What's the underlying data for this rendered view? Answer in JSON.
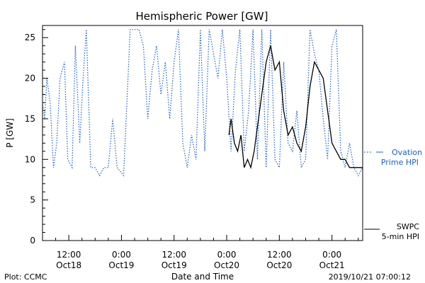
{
  "chart_data": {
    "type": "line",
    "title": "Hemispheric Power [GW]",
    "ylabel": "P [GW]",
    "xlabel": "Date and Time",
    "ylim": [
      0,
      26.5
    ],
    "yticks": [
      0,
      5,
      10,
      15,
      20,
      25
    ],
    "xlim": [
      "2019-10-18 06:00",
      "2019-10-21 07:00"
    ],
    "xticks": [
      {
        "x": "2019-10-18 12:00",
        "time": "12:00",
        "date": "Oct18"
      },
      {
        "x": "2019-10-19 00:00",
        "time": "0:00",
        "date": "Oct19"
      },
      {
        "x": "2019-10-19 12:00",
        "time": "12:00",
        "date": "Oct19"
      },
      {
        "x": "2019-10-20 00:00",
        "time": "0:00",
        "date": "Oct20"
      },
      {
        "x": "2019-10-20 12:00",
        "time": "12:00",
        "date": "Oct20"
      },
      {
        "x": "2019-10-21 00:00",
        "time": "0:00",
        "date": "Oct21"
      }
    ],
    "series": [
      {
        "name": "Ovation Prime HPI",
        "color": "#1a5fd0",
        "style": "dotted",
        "x": [
          "2019-10-18 06:00",
          "2019-10-18 06:30",
          "2019-10-18 07:00",
          "2019-10-18 07:45",
          "2019-10-18 08:30",
          "2019-10-18 09:15",
          "2019-10-18 10:00",
          "2019-10-18 11:00",
          "2019-10-18 11:45",
          "2019-10-18 12:45",
          "2019-10-18 13:30",
          "2019-10-18 14:30",
          "2019-10-18 15:15",
          "2019-10-18 16:00",
          "2019-10-18 17:00",
          "2019-10-18 18:00",
          "2019-10-18 19:00",
          "2019-10-18 20:00",
          "2019-10-18 21:00",
          "2019-10-18 22:00",
          "2019-10-18 23:00",
          "2019-10-19 00:30",
          "2019-10-19 02:00",
          "2019-10-19 03:00",
          "2019-10-19 04:00",
          "2019-10-19 05:00",
          "2019-10-19 06:00",
          "2019-10-19 07:00",
          "2019-10-19 08:00",
          "2019-10-19 09:00",
          "2019-10-19 10:00",
          "2019-10-19 11:00",
          "2019-10-19 12:00",
          "2019-10-19 13:00",
          "2019-10-19 14:00",
          "2019-10-19 15:00",
          "2019-10-19 16:00",
          "2019-10-19 17:00",
          "2019-10-19 18:00",
          "2019-10-19 19:00",
          "2019-10-19 20:00",
          "2019-10-19 21:00",
          "2019-10-19 22:00",
          "2019-10-19 23:00",
          "2019-10-20 00:00",
          "2019-10-20 01:00",
          "2019-10-20 02:00",
          "2019-10-20 03:00",
          "2019-10-20 04:00",
          "2019-10-20 05:00",
          "2019-10-20 06:00",
          "2019-10-20 07:00",
          "2019-10-20 08:00",
          "2019-10-20 09:00",
          "2019-10-20 10:00",
          "2019-10-20 11:00",
          "2019-10-20 12:00",
          "2019-10-20 13:00",
          "2019-10-20 14:00",
          "2019-10-20 15:00",
          "2019-10-20 16:00",
          "2019-10-20 17:00",
          "2019-10-20 18:00",
          "2019-10-20 19:00",
          "2019-10-20 20:00",
          "2019-10-20 21:00",
          "2019-10-20 22:00",
          "2019-10-20 23:00",
          "2019-10-21 00:00",
          "2019-10-21 01:00",
          "2019-10-21 02:00",
          "2019-10-21 03:00",
          "2019-10-21 04:00",
          "2019-10-21 05:00",
          "2019-10-21 06:00",
          "2019-10-21 07:00"
        ],
        "y": [
          17,
          15,
          20,
          17,
          9,
          12,
          20,
          22,
          10,
          9,
          24,
          12,
          20,
          26,
          9,
          9,
          8,
          9,
          9,
          15,
          9,
          8,
          26,
          26,
          26,
          24,
          15,
          21,
          24,
          18,
          22,
          15,
          22,
          26,
          12,
          9,
          13,
          10,
          26,
          11,
          26,
          23,
          20,
          26,
          20,
          11,
          21,
          26,
          11,
          16,
          26,
          10,
          26,
          9,
          26,
          10,
          9,
          22,
          12,
          11,
          16,
          9,
          10,
          26,
          23,
          21,
          15,
          10,
          24,
          26,
          11,
          9,
          12,
          9,
          8,
          9
        ]
      },
      {
        "name": "SWPC 5-min HPI",
        "color": "#000000",
        "style": "solid",
        "x": [
          "2019-10-20 00:30",
          "2019-10-20 01:00",
          "2019-10-20 01:45",
          "2019-10-20 02:30",
          "2019-10-20 03:15",
          "2019-10-20 04:00",
          "2019-10-20 04:45",
          "2019-10-20 05:30",
          "2019-10-20 06:15",
          "2019-10-20 07:00",
          "2019-10-20 08:00",
          "2019-10-20 09:00",
          "2019-10-20 10:00",
          "2019-10-20 11:00",
          "2019-10-20 12:00",
          "2019-10-20 13:00",
          "2019-10-20 14:00",
          "2019-10-20 15:00",
          "2019-10-20 16:00",
          "2019-10-20 17:00",
          "2019-10-20 18:00",
          "2019-10-20 19:00",
          "2019-10-20 20:00",
          "2019-10-20 21:00",
          "2019-10-20 22:00",
          "2019-10-20 23:00",
          "2019-10-21 00:00",
          "2019-10-21 01:00",
          "2019-10-21 02:00",
          "2019-10-21 03:00",
          "2019-10-21 04:00",
          "2019-10-21 05:00",
          "2019-10-21 06:00",
          "2019-10-21 07:00"
        ],
        "y": [
          13,
          15,
          12,
          11,
          13,
          9,
          10,
          9,
          11,
          14,
          18,
          22,
          24,
          21,
          22,
          16,
          13,
          14,
          12,
          11,
          14,
          19,
          22,
          21,
          20,
          16,
          12,
          11,
          10,
          10,
          9,
          9,
          9,
          9
        ]
      }
    ]
  },
  "legend": {
    "ovation_line1": "Ovation",
    "ovation_line2": "Prime HPI",
    "swpc_line1": "SWPC",
    "swpc_line2": "5-min HPI"
  },
  "footer": {
    "left": "Plot: CCMC",
    "timestamp": "2019/10/21 07:00:12"
  }
}
